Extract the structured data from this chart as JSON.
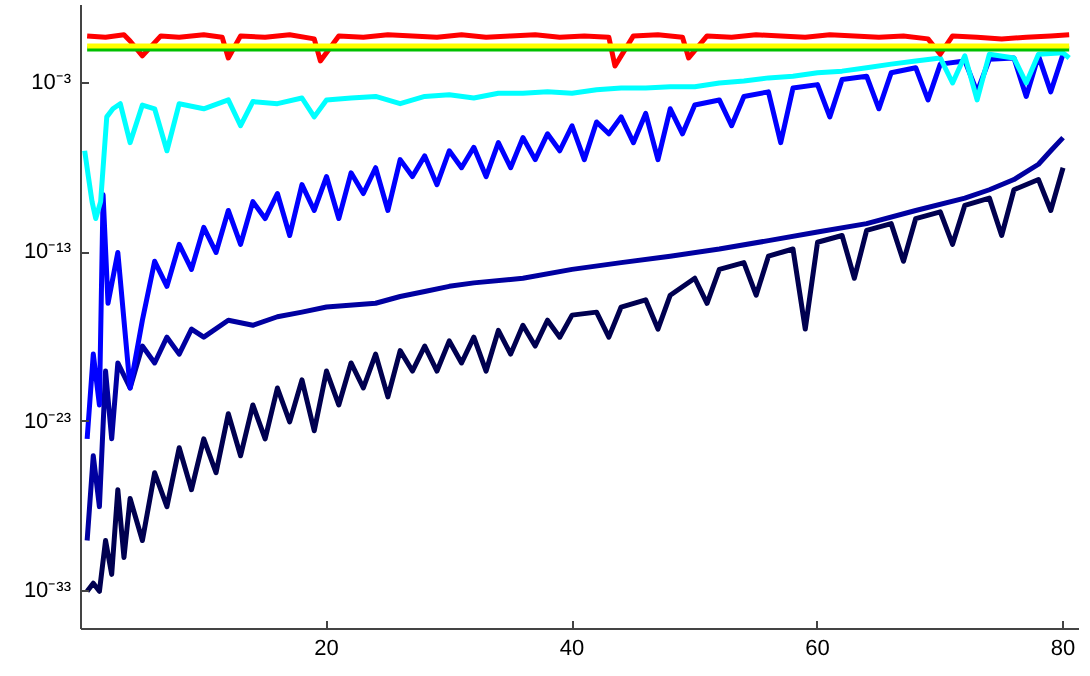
{
  "chart_data": {
    "type": "line",
    "log": "y",
    "grid": false,
    "marker": "none",
    "line_style": "solid",
    "xlim": [
      0,
      81.3
    ],
    "ylim": [
      6e-36,
      40
    ],
    "xticks": [
      20,
      40,
      60,
      80
    ],
    "yticks": [
      {
        "value": 0.001,
        "label": "10⁻³"
      },
      {
        "value": 1e-13,
        "label": "10⁻¹³"
      },
      {
        "value": 1e-23,
        "label": "10⁻²³"
      },
      {
        "value": 1e-33,
        "label": "10⁻³³"
      }
    ],
    "series": [
      {
        "color": "#000050",
        "x": [
          0.5,
          1,
          1.5,
          2,
          2.5,
          3,
          3.5,
          4,
          5,
          6,
          7,
          8,
          9,
          10,
          11,
          12,
          13,
          14,
          15,
          16,
          17,
          18,
          19,
          20,
          21,
          22,
          23,
          24,
          25,
          26,
          27,
          28,
          29,
          30,
          31,
          32,
          33,
          34,
          35,
          36,
          37,
          38,
          39,
          40,
          42,
          43,
          44,
          46,
          47,
          48,
          50,
          51,
          52,
          54,
          55,
          56,
          58,
          59,
          60,
          62,
          63,
          64,
          66,
          67,
          68,
          70,
          71,
          72,
          74,
          75,
          76,
          78,
          79,
          80
        ],
        "values": [
          1e-33,
          3e-33,
          1e-33,
          1e-30,
          1e-32,
          1e-27,
          1e-31,
          3e-28,
          1e-30,
          1e-26,
          1e-28,
          3e-25,
          1e-27,
          1e-24,
          1e-26,
          3e-23,
          1e-25,
          1e-22,
          1e-24,
          1e-21,
          1e-23,
          3e-21,
          3e-24,
          1e-20,
          1e-22,
          3e-20,
          1e-21,
          1e-19,
          3e-22,
          1.6e-19,
          1e-20,
          3e-19,
          1e-20,
          6e-19,
          3e-20,
          1e-18,
          1e-20,
          2.5e-18,
          1e-19,
          5e-18,
          3e-19,
          1e-17,
          1e-18,
          2e-17,
          3e-17,
          1e-18,
          6e-17,
          1.6e-16,
          3e-18,
          3e-16,
          3e-15,
          1e-16,
          1e-14,
          2.5e-14,
          3e-16,
          6e-14,
          1.6e-13,
          3e-18,
          4e-13,
          1e-12,
          3e-15,
          2e-12,
          5e-12,
          3e-14,
          1e-11,
          2.5e-11,
          3e-13,
          6e-11,
          1.6e-10,
          1e-12,
          5e-10,
          2e-09,
          3e-11,
          1e-08
        ]
      },
      {
        "color": "#0000a0",
        "x": [
          0.5,
          1,
          1.5,
          2,
          2.5,
          3,
          4,
          5,
          6,
          7,
          8,
          9,
          10,
          12,
          14,
          16,
          18,
          20,
          24,
          26,
          28,
          30,
          32,
          36,
          40,
          44,
          48,
          52,
          56,
          60,
          64,
          68,
          72,
          74,
          76,
          78,
          79,
          80
        ],
        "values": [
          1e-30,
          1e-25,
          1e-28,
          1e-20,
          1e-24,
          3e-20,
          1e-21,
          3e-19,
          3e-20,
          1e-18,
          1e-19,
          3e-18,
          1e-18,
          1e-17,
          5e-18,
          1.6e-17,
          3e-17,
          6e-17,
          1e-16,
          2.5e-16,
          5e-16,
          1e-15,
          1.6e-15,
          3e-15,
          1e-14,
          2.5e-14,
          6e-14,
          1.6e-13,
          5e-13,
          1.6e-12,
          5e-12,
          3e-11,
          1.6e-10,
          5e-10,
          2e-09,
          1.6e-08,
          1e-07,
          6e-07
        ]
      },
      {
        "color": "#0000ff",
        "x": [
          0.5,
          1,
          1.5,
          1.8,
          2.2,
          3,
          4,
          5,
          6,
          7,
          8,
          9,
          10,
          11,
          12,
          13,
          14,
          15,
          16,
          17,
          18,
          19,
          20,
          21,
          22,
          23,
          24,
          25,
          26,
          27,
          28,
          29,
          30,
          31,
          32,
          33,
          34,
          35,
          36,
          37,
          38,
          39,
          40,
          41,
          42,
          43,
          44,
          45,
          46,
          47,
          48,
          49,
          50,
          52,
          53,
          54,
          56,
          57,
          58,
          60,
          61,
          62,
          64,
          65,
          66,
          68,
          69,
          70,
          72,
          73,
          74,
          76,
          77,
          78,
          79,
          80
        ],
        "values": [
          1e-24,
          1e-19,
          1e-22,
          2.5e-10,
          1e-16,
          1e-13,
          1e-21,
          1e-17,
          3e-14,
          1e-15,
          3e-13,
          1e-14,
          3e-12,
          1e-13,
          3e-11,
          3e-13,
          1e-10,
          1e-11,
          3e-10,
          1e-12,
          1e-09,
          3e-11,
          3e-09,
          1e-11,
          5e-09,
          3e-10,
          1e-08,
          3e-11,
          3e-08,
          3e-09,
          5e-08,
          1e-09,
          1e-07,
          1e-08,
          1.6e-07,
          3e-09,
          3e-07,
          1e-08,
          6e-07,
          3e-08,
          1e-06,
          1e-07,
          3e-06,
          3e-08,
          5e-06,
          1e-06,
          1e-05,
          3e-07,
          1.6e-05,
          3e-08,
          3e-05,
          1e-06,
          5e-05,
          0.0001,
          3e-06,
          0.00016,
          0.0003,
          3e-07,
          0.0005,
          0.0008,
          1e-05,
          0.0016,
          0.0025,
          3e-05,
          0.004,
          0.008,
          0.0001,
          0.013,
          0.02,
          0.0003,
          0.025,
          0.03,
          0.00016,
          0.04,
          0.0003,
          0.05
        ]
      },
      {
        "color": "#00ffff",
        "x": [
          0.3,
          0.6,
          0.9,
          1.2,
          1.6,
          2.1,
          2.6,
          3.2,
          4,
          5,
          6,
          7,
          8,
          10,
          12,
          13,
          14,
          16,
          18,
          19,
          20,
          22,
          24,
          26,
          28,
          30,
          32,
          34,
          36,
          38,
          40,
          42,
          44,
          46,
          48,
          50,
          52,
          54,
          56,
          58,
          60,
          62,
          64,
          66,
          68,
          70,
          71,
          72,
          73,
          74,
          76,
          77,
          78,
          80,
          80.5
        ],
        "values": [
          1e-07,
          3e-09,
          1e-10,
          1e-11,
          1e-10,
          1e-05,
          3e-05,
          6e-05,
          3e-07,
          5e-05,
          3e-05,
          1e-07,
          6e-05,
          3e-05,
          0.0001,
          3e-06,
          8e-05,
          6e-05,
          0.00013,
          1e-05,
          0.0001,
          0.00013,
          0.00016,
          6e-05,
          0.00016,
          0.0002,
          0.00013,
          0.00025,
          0.00025,
          0.0003,
          0.00025,
          0.0004,
          0.0005,
          0.0005,
          0.0006,
          0.0006,
          0.001,
          0.0013,
          0.002,
          0.0025,
          0.004,
          0.005,
          0.008,
          0.013,
          0.02,
          0.03,
          0.001,
          0.04,
          0.0001,
          0.05,
          0.03,
          0.001,
          0.05,
          0.06,
          0.03
        ]
      },
      {
        "color": "#ff0000",
        "x": [
          0.5,
          2,
          3.5,
          4,
          5,
          6.5,
          8,
          10,
          11.5,
          12,
          13,
          15,
          17,
          19,
          19.5,
          21,
          23,
          25,
          27,
          29,
          31,
          33,
          35,
          37,
          39,
          41,
          43,
          43.5,
          45,
          47,
          49,
          49.5,
          51,
          53,
          55,
          57,
          59,
          61,
          63,
          65,
          67,
          69,
          70,
          71,
          73,
          75,
          77,
          79,
          80.5
        ],
        "values": [
          0.6,
          0.5,
          0.7,
          0.3,
          0.04,
          0.6,
          0.5,
          0.7,
          0.5,
          0.03,
          0.6,
          0.5,
          0.7,
          0.4,
          0.02,
          0.6,
          0.5,
          0.7,
          0.6,
          0.5,
          0.7,
          0.5,
          0.6,
          0.7,
          0.5,
          0.6,
          0.5,
          0.01,
          0.6,
          0.7,
          0.5,
          0.03,
          0.6,
          0.5,
          0.7,
          0.6,
          0.5,
          0.7,
          0.6,
          0.5,
          0.6,
          0.4,
          0.05,
          0.6,
          0.5,
          0.4,
          0.5,
          0.6,
          0.7
        ]
      },
      {
        "color": "#00c000",
        "x": [
          0.5,
          80.5
        ],
        "values": [
          0.1,
          0.1
        ]
      },
      {
        "color": "#ffff00",
        "x": [
          0.5,
          80.5
        ],
        "values": [
          0.15,
          0.15
        ]
      }
    ]
  }
}
